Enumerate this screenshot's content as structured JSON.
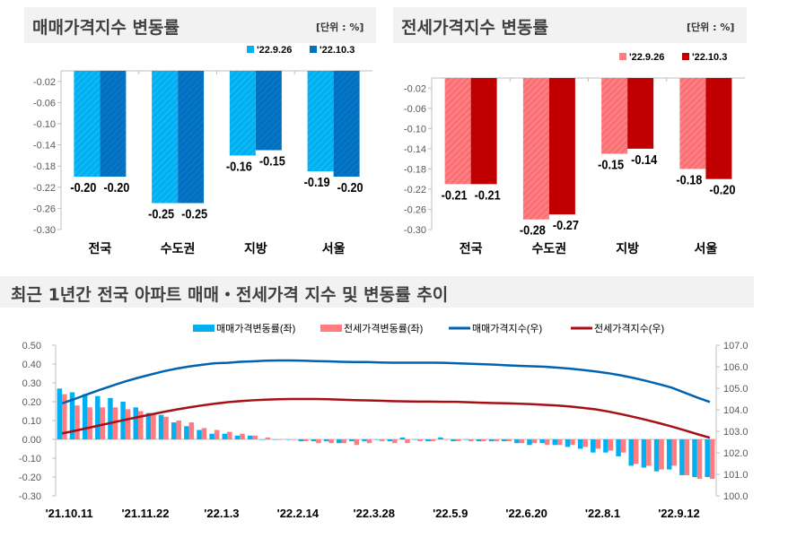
{
  "panels": {
    "sale_title": "매매가격지수 변동률",
    "jeonse_title": "전세가격지수 변동률",
    "unit": "[단위 : %]",
    "trend_title": "최근 1년간 전국 아파트 매매・전세가격 지수 및 변동률 추이"
  },
  "colors": {
    "sale_prev": "#00b0f0",
    "sale_cur": "#0070c0",
    "jeonse_prev": "#ff7c80",
    "jeonse_cur": "#c00000",
    "sale_index": "#0063b1",
    "jeonse_index": "#a50f15"
  },
  "chart_data": [
    {
      "type": "bar",
      "title": "매매가격지수 변동률",
      "categories": [
        "전국",
        "수도권",
        "지방",
        "서울"
      ],
      "series": [
        {
          "name": "'22.9.26",
          "values": [
            -0.2,
            -0.25,
            -0.16,
            -0.19
          ]
        },
        {
          "name": "'22.10.3",
          "values": [
            -0.2,
            -0.25,
            -0.15,
            -0.2
          ]
        }
      ],
      "data_labels": [
        [
          "-0.20",
          "-0.25",
          "-0.16",
          "-0.19"
        ],
        [
          "-0.20",
          "-0.25",
          "-0.15",
          "-0.20"
        ]
      ],
      "yticks": [
        "-0.02",
        "-0.06",
        "-0.10",
        "-0.14",
        "-0.18",
        "-0.22",
        "-0.26",
        "-0.30"
      ],
      "ylim": [
        -0.3,
        0.0
      ],
      "legend": "top-right"
    },
    {
      "type": "bar",
      "title": "전세가격지수 변동률",
      "categories": [
        "전국",
        "수도권",
        "지방",
        "서울"
      ],
      "series": [
        {
          "name": "'22.9.26",
          "values": [
            -0.21,
            -0.28,
            -0.15,
            -0.18
          ]
        },
        {
          "name": "'22.10.3",
          "values": [
            -0.21,
            -0.27,
            -0.14,
            -0.2
          ]
        }
      ],
      "data_labels": [
        [
          "-0.21",
          "-0.28",
          "-0.15",
          "-0.18"
        ],
        [
          "-0.21",
          "-0.27",
          "-0.14",
          "-0.20"
        ]
      ],
      "yticks": [
        "-0.02",
        "-0.06",
        "-0.10",
        "-0.14",
        "-0.18",
        "-0.22",
        "-0.26",
        "-0.30"
      ],
      "ylim": [
        -0.3,
        0.0
      ],
      "legend": "top-right"
    },
    {
      "type": "bar+line",
      "title": "최근 1년간 전국 아파트 매매・전세가격 지수 및 변동률 추이",
      "xtick_labels": [
        "'21.10.11",
        "'21.11.22",
        "'22.1.3",
        "'22.2.14",
        "'22.3.28",
        "'22.5.9",
        "'22.6.20",
        "'22.8.1",
        "'22.9.12"
      ],
      "xtick_every": 6,
      "y_left": {
        "ticks": [
          "0.50",
          "0.40",
          "0.30",
          "0.20",
          "0.10",
          "0.00",
          "-0.10",
          "-0.20",
          "-0.30"
        ],
        "lim": [
          -0.3,
          0.5
        ]
      },
      "y_right": {
        "ticks": [
          "107.0",
          "106.0",
          "105.0",
          "104.0",
          "103.0",
          "102.0",
          "101.0",
          "100.0"
        ],
        "lim": [
          100.0,
          107.0
        ]
      },
      "legend": "top",
      "series": [
        {
          "name": "매매가격변동률(좌)",
          "kind": "bar",
          "axis": "left",
          "values": [
            0.27,
            0.25,
            0.24,
            0.23,
            0.22,
            0.2,
            0.17,
            0.14,
            0.13,
            0.09,
            0.07,
            0.05,
            0.03,
            0.03,
            0.02,
            0.02,
            0.0,
            0.0,
            0.0,
            -0.01,
            -0.01,
            -0.01,
            -0.02,
            -0.01,
            -0.01,
            0.0,
            -0.01,
            0.01,
            0.0,
            -0.01,
            0.01,
            -0.01,
            0.0,
            -0.01,
            -0.01,
            -0.01,
            -0.02,
            -0.03,
            -0.02,
            -0.03,
            -0.04,
            -0.05,
            -0.07,
            -0.07,
            -0.09,
            -0.14,
            -0.15,
            -0.17,
            -0.16,
            -0.19,
            -0.2,
            -0.2
          ]
        },
        {
          "name": "전세가격변동률(좌)",
          "kind": "bar",
          "axis": "left",
          "values": [
            0.24,
            0.18,
            0.17,
            0.17,
            0.17,
            0.16,
            0.15,
            0.14,
            0.12,
            0.1,
            0.09,
            0.06,
            0.05,
            0.04,
            0.03,
            0.02,
            0.01,
            0.0,
            0.0,
            -0.01,
            -0.02,
            -0.02,
            -0.02,
            -0.03,
            -0.02,
            -0.01,
            -0.02,
            -0.02,
            -0.01,
            -0.01,
            0.0,
            -0.01,
            -0.01,
            -0.01,
            -0.01,
            -0.01,
            -0.02,
            -0.02,
            -0.03,
            -0.03,
            -0.03,
            -0.04,
            -0.05,
            -0.06,
            -0.07,
            -0.13,
            -0.14,
            -0.16,
            -0.14,
            -0.19,
            -0.21,
            -0.21
          ]
        },
        {
          "name": "매매가격지수(우)",
          "kind": "line",
          "axis": "right",
          "values": [
            104.3,
            104.5,
            104.72,
            104.93,
            105.13,
            105.32,
            105.49,
            105.64,
            105.79,
            105.91,
            106.01,
            106.09,
            106.16,
            106.18,
            106.23,
            106.25,
            106.28,
            106.29,
            106.29,
            106.28,
            106.26,
            106.25,
            106.23,
            106.22,
            106.22,
            106.2,
            106.19,
            106.19,
            106.19,
            106.19,
            106.18,
            106.16,
            106.14,
            106.12,
            106.1,
            106.07,
            106.04,
            106.02,
            106.0,
            105.96,
            105.91,
            105.85,
            105.78,
            105.7,
            105.6,
            105.48,
            105.34,
            105.19,
            105.03,
            104.8,
            104.57,
            104.36
          ]
        },
        {
          "name": "전세가격지수(우)",
          "kind": "line",
          "axis": "right",
          "values": [
            102.9,
            103.02,
            103.15,
            103.28,
            103.41,
            103.54,
            103.66,
            103.78,
            103.9,
            104.01,
            104.11,
            104.2,
            104.28,
            104.35,
            104.4,
            104.44,
            104.47,
            104.49,
            104.5,
            104.5,
            104.5,
            104.49,
            104.47,
            104.45,
            104.44,
            104.42,
            104.4,
            104.39,
            104.38,
            104.38,
            104.37,
            104.37,
            104.35,
            104.33,
            104.31,
            104.3,
            104.28,
            104.26,
            104.23,
            104.2,
            104.15,
            104.09,
            104.02,
            103.92,
            103.8,
            103.67,
            103.53,
            103.38,
            103.22,
            103.05,
            102.87,
            102.7
          ]
        }
      ]
    }
  ]
}
